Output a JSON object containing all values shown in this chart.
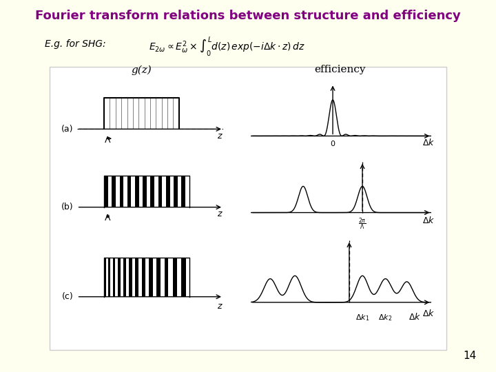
{
  "title": "Fourier transform relations between structure and efficiency",
  "title_color": "#800080",
  "bg_color": "#FFFFF0",
  "panel_bg": "#FFFFFF",
  "slide_number": "14",
  "subtitle": "E.g. for SHG:",
  "formula": "$E_{2\\omega} \\propto E_{\\omega}^{2} \\times \\int_{0}^{L} d(z)\\,exp(-i\\Delta k \\cdot z)\\,dz$"
}
